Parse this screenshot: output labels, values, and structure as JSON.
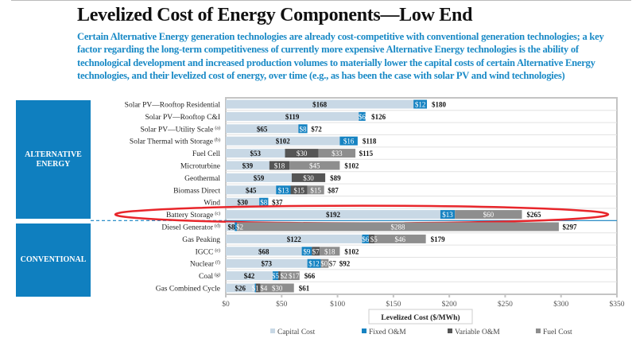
{
  "title": "Levelized Cost of Energy Components—Low End",
  "subtitle": "Certain Alternative Energy generation technologies are already cost-competitive with conventional generation technologies; a key factor regarding the long-term competitiveness of currently more expensive Alternative Energy technologies is the ability of technological development and increased production volumes to materially lower the capital costs of certain Alternative Energy technologies, and their levelized cost of energy, over time (e.g., as has been the case with solar PV and wind technologies)",
  "groups": {
    "alternative": "ALTERNATIVE ENERGY",
    "conventional": "CONVENTIONAL"
  },
  "colors": {
    "capital": "#c8d8e5",
    "fixed": "#1683c2",
    "variable": "#555555",
    "fuel": "#8e8e8e",
    "accent": "#0f7fbf",
    "highlight": "#e8262b"
  },
  "chart_data": {
    "type": "bar",
    "stacked": true,
    "orientation": "horizontal",
    "title": "Levelized Cost of Energy Components—Low End",
    "xlabel": "Levelized Cost ($/MWh)",
    "xlim": [
      0,
      350
    ],
    "xticks": [
      "$0",
      "$50",
      "$100",
      "$150",
      "$200",
      "$250",
      "$300",
      "$350"
    ],
    "xtick_values": [
      0,
      50,
      100,
      150,
      200,
      250,
      300,
      350
    ],
    "legend": [
      "Capital Cost",
      "Fixed O&M",
      "Variable O&M",
      "Fuel Cost"
    ],
    "legend_position": "bottom",
    "categories": [
      {
        "label": "Solar PV—Rooftop Residential",
        "note": "",
        "group": "alternative",
        "capital": 168,
        "fixed": 12,
        "variable": 0,
        "fuel": 0,
        "total": 180
      },
      {
        "label": "Solar PV—Rooftop C&I",
        "note": "",
        "group": "alternative",
        "capital": 119,
        "fixed": 6,
        "variable": 0,
        "fuel": 0,
        "total": 126
      },
      {
        "label": "Solar PV—Utility Scale",
        "note": "(a)",
        "group": "alternative",
        "capital": 65,
        "fixed": 8,
        "variable": 0,
        "fuel": 0,
        "total": 72
      },
      {
        "label": "Solar Thermal with Storage",
        "note": "(b)",
        "group": "alternative",
        "capital": 102,
        "fixed": 16,
        "variable": 0,
        "fuel": 0,
        "total": 118
      },
      {
        "label": "Fuel Cell",
        "note": "",
        "group": "alternative",
        "capital": 53,
        "fixed": 0,
        "variable": 30,
        "fuel": 33,
        "total": 115
      },
      {
        "label": "Microturbine",
        "note": "",
        "group": "alternative",
        "capital": 39,
        "fixed": 0,
        "variable": 18,
        "fuel": 45,
        "total": 102
      },
      {
        "label": "Geothermal",
        "note": "",
        "group": "alternative",
        "capital": 59,
        "fixed": 0,
        "variable": 30,
        "fuel": 0,
        "total": 89
      },
      {
        "label": "Biomass Direct",
        "note": "",
        "group": "alternative",
        "capital": 45,
        "fixed": 13,
        "variable": 15,
        "fuel": 15,
        "total": 87
      },
      {
        "label": "Wind",
        "note": "",
        "group": "alternative",
        "capital": 30,
        "fixed": 8,
        "variable": 0,
        "fuel": 0,
        "total": 37
      },
      {
        "label": "Battery Storage",
        "note": "(c)",
        "group": "alternative",
        "capital": 192,
        "fixed": 13,
        "variable": 0,
        "fuel": 60,
        "total": 265,
        "highlighted": true
      },
      {
        "label": "Diesel Generator",
        "note": "(d)",
        "group": "conventional",
        "capital": 8,
        "fixed": 2,
        "variable": 0,
        "fuel": 288,
        "total": 297
      },
      {
        "label": "Gas Peaking",
        "note": "",
        "group": "conventional",
        "capital": 122,
        "fixed": 6,
        "variable": 5,
        "fuel": 46,
        "total": 179
      },
      {
        "label": "IGCC",
        "note": "(e)",
        "group": "conventional",
        "capital": 68,
        "fixed": 9,
        "variable": 7,
        "fuel": 18,
        "total": 102
      },
      {
        "label": "Nuclear",
        "note": "(f)",
        "group": "conventional",
        "capital": 73,
        "fixed": 12,
        "variable": 0,
        "fuel": 7,
        "total": 92,
        "show_zero_variable": true
      },
      {
        "label": "Coal",
        "note": "(g)",
        "group": "conventional",
        "capital": 42,
        "fixed": 5,
        "variable": 2,
        "fuel": 17,
        "total": 66
      },
      {
        "label": "Gas Combined Cycle",
        "note": "",
        "group": "conventional",
        "capital": 26,
        "fixed": 1,
        "variable": 4,
        "fuel": 30,
        "total": 61
      }
    ]
  }
}
